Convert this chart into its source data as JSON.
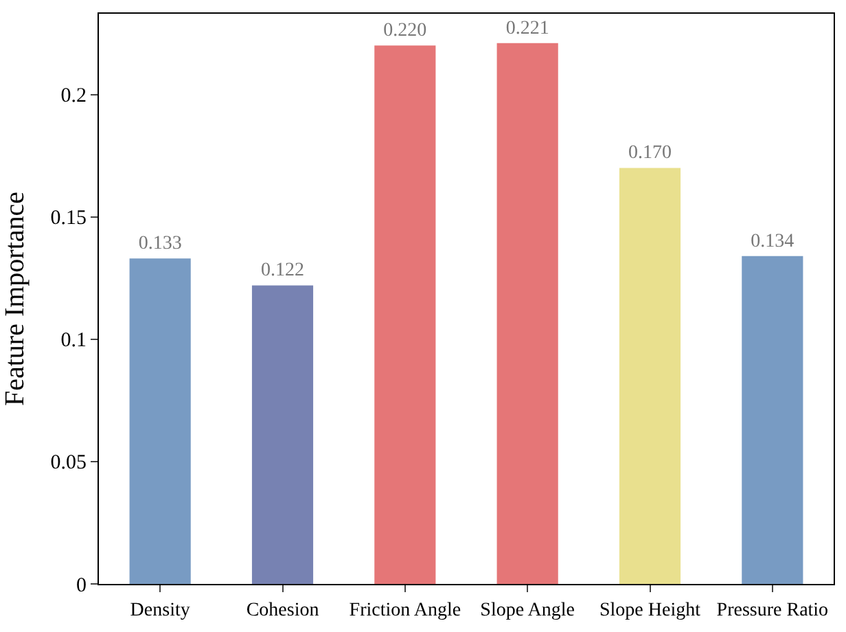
{
  "chart_data": {
    "type": "bar",
    "ylabel": "Feature Importance",
    "categories": [
      "Density",
      "Cohesion",
      "Friction Angle",
      "Slope Angle",
      "Slope Height",
      "Pressure Ratio"
    ],
    "values": [
      0.133,
      0.122,
      0.22,
      0.221,
      0.17,
      0.134
    ],
    "colors": [
      "#789bc3",
      "#7782b2",
      "#e57677",
      "#e57677",
      "#e9e08e",
      "#789bc3"
    ],
    "value_labels": [
      "0.133",
      "0.122",
      "0.220",
      "0.221",
      "0.170",
      "0.134"
    ],
    "ylim": [
      0,
      0.233
    ],
    "yticks": [
      0,
      0.05,
      0.1,
      0.15,
      0.2
    ]
  }
}
